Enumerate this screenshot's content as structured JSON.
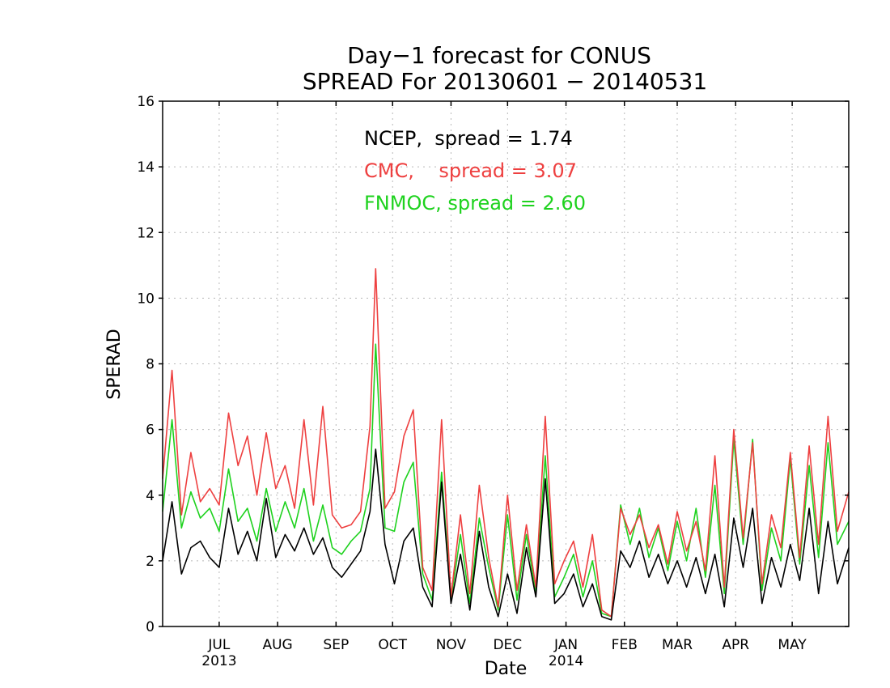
{
  "chart_data": {
    "type": "line",
    "title": "Day−1 forecast for CONUS",
    "subtitle": "SPREAD For 20130601 − 20140531",
    "xlabel": "Date",
    "ylabel": "SPERAD",
    "ylim": [
      0,
      16
    ],
    "yticks": [
      "0",
      "2",
      "4",
      "6",
      "8",
      "10",
      "12",
      "14",
      "16"
    ],
    "xlim": [
      "2013-06-01",
      "2014-05-31"
    ],
    "grid": true,
    "legend_position": "top-center",
    "xticks": [
      {
        "date": "2013-07-01",
        "label": "JUL",
        "sublabel": "2013"
      },
      {
        "date": "2013-08-01",
        "label": "AUG",
        "sublabel": ""
      },
      {
        "date": "2013-09-01",
        "label": "SEP",
        "sublabel": ""
      },
      {
        "date": "2013-10-01",
        "label": "OCT",
        "sublabel": ""
      },
      {
        "date": "2013-11-01",
        "label": "NOV",
        "sublabel": ""
      },
      {
        "date": "2013-12-01",
        "label": "DEC",
        "sublabel": ""
      },
      {
        "date": "2014-01-01",
        "label": "JAN",
        "sublabel": "2014"
      },
      {
        "date": "2014-02-01",
        "label": "FEB",
        "sublabel": ""
      },
      {
        "date": "2014-03-01",
        "label": "MAR",
        "sublabel": ""
      },
      {
        "date": "2014-04-01",
        "label": "APR",
        "sublabel": ""
      },
      {
        "date": "2014-05-01",
        "label": "MAY",
        "sublabel": ""
      }
    ],
    "series": [
      {
        "name": "NCEP",
        "legend": "NCEP,  spread = 1.74",
        "color": "#000000",
        "x": [
          "2013-06-01",
          "2013-06-06",
          "2013-06-11",
          "2013-06-16",
          "2013-06-21",
          "2013-06-26",
          "2013-07-01",
          "2013-07-06",
          "2013-07-11",
          "2013-07-16",
          "2013-07-21",
          "2013-07-26",
          "2013-07-31",
          "2013-08-05",
          "2013-08-10",
          "2013-08-15",
          "2013-08-20",
          "2013-08-25",
          "2013-08-30",
          "2013-09-04",
          "2013-09-09",
          "2013-09-14",
          "2013-09-19",
          "2013-09-22",
          "2013-09-27",
          "2013-10-02",
          "2013-10-07",
          "2013-10-12",
          "2013-10-17",
          "2013-10-22",
          "2013-10-27",
          "2013-11-01",
          "2013-11-06",
          "2013-11-11",
          "2013-11-16",
          "2013-11-21",
          "2013-11-26",
          "2013-12-01",
          "2013-12-06",
          "2013-12-11",
          "2013-12-16",
          "2013-12-21",
          "2013-12-26",
          "2013-12-31",
          "2014-01-05",
          "2014-01-10",
          "2014-01-15",
          "2014-01-20",
          "2014-01-25",
          "2014-01-30",
          "2014-02-04",
          "2014-02-09",
          "2014-02-14",
          "2014-02-19",
          "2014-02-24",
          "2014-03-01",
          "2014-03-06",
          "2014-03-11",
          "2014-03-16",
          "2014-03-21",
          "2014-03-26",
          "2014-03-31",
          "2014-04-05",
          "2014-04-10",
          "2014-04-15",
          "2014-04-20",
          "2014-04-25",
          "2014-04-30",
          "2014-05-05",
          "2014-05-10",
          "2014-05-15",
          "2014-05-20",
          "2014-05-25",
          "2014-05-31"
        ],
        "values": [
          2.0,
          3.8,
          1.6,
          2.4,
          2.6,
          2.1,
          1.8,
          3.6,
          2.2,
          2.9,
          2.0,
          3.9,
          2.1,
          2.8,
          2.3,
          3.0,
          2.2,
          2.7,
          1.8,
          1.5,
          1.9,
          2.3,
          3.5,
          5.4,
          2.5,
          1.3,
          2.6,
          3.0,
          1.2,
          0.6,
          4.4,
          0.7,
          2.2,
          0.5,
          2.9,
          1.2,
          0.3,
          1.6,
          0.4,
          2.4,
          0.9,
          4.5,
          0.7,
          1.0,
          1.6,
          0.6,
          1.3,
          0.3,
          0.2,
          2.3,
          1.8,
          2.6,
          1.5,
          2.2,
          1.3,
          2.0,
          1.2,
          2.1,
          1.0,
          2.2,
          0.6,
          3.3,
          1.8,
          3.6,
          0.7,
          2.1,
          1.2,
          2.5,
          1.4,
          3.6,
          1.0,
          3.2,
          1.3,
          2.4
        ]
      },
      {
        "name": "CMC",
        "legend": "CMC,    spread = 3.07",
        "color": "#ee4040",
        "x": [
          "2013-06-01",
          "2013-06-06",
          "2013-06-11",
          "2013-06-16",
          "2013-06-21",
          "2013-06-26",
          "2013-07-01",
          "2013-07-06",
          "2013-07-11",
          "2013-07-16",
          "2013-07-21",
          "2013-07-26",
          "2013-07-31",
          "2013-08-05",
          "2013-08-10",
          "2013-08-15",
          "2013-08-20",
          "2013-08-25",
          "2013-08-30",
          "2013-09-04",
          "2013-09-09",
          "2013-09-14",
          "2013-09-19",
          "2013-09-22",
          "2013-09-27",
          "2013-10-02",
          "2013-10-07",
          "2013-10-12",
          "2013-10-17",
          "2013-10-22",
          "2013-10-27",
          "2013-11-01",
          "2013-11-06",
          "2013-11-11",
          "2013-11-16",
          "2013-11-21",
          "2013-11-26",
          "2013-12-01",
          "2013-12-06",
          "2013-12-11",
          "2013-12-16",
          "2013-12-21",
          "2013-12-26",
          "2013-12-31",
          "2014-01-05",
          "2014-01-10",
          "2014-01-15",
          "2014-01-20",
          "2014-01-25",
          "2014-01-30",
          "2014-02-04",
          "2014-02-09",
          "2014-02-14",
          "2014-02-19",
          "2014-02-24",
          "2014-03-01",
          "2014-03-06",
          "2014-03-11",
          "2014-03-16",
          "2014-03-21",
          "2014-03-26",
          "2014-03-31",
          "2014-04-05",
          "2014-04-10",
          "2014-04-15",
          "2014-04-20",
          "2014-04-25",
          "2014-04-30",
          "2014-05-05",
          "2014-05-10",
          "2014-05-15",
          "2014-05-20",
          "2014-05-25",
          "2014-05-31"
        ],
        "values": [
          4.5,
          7.8,
          3.4,
          5.3,
          3.8,
          4.2,
          3.7,
          6.5,
          4.9,
          5.8,
          4.0,
          5.9,
          4.2,
          4.9,
          3.6,
          6.3,
          3.7,
          6.7,
          3.4,
          3.0,
          3.1,
          3.5,
          6.1,
          10.9,
          3.6,
          4.1,
          5.8,
          6.6,
          1.8,
          1.1,
          6.3,
          0.9,
          3.4,
          1.0,
          4.3,
          2.1,
          0.6,
          4.0,
          1.1,
          3.1,
          1.2,
          6.4,
          1.3,
          2.0,
          2.6,
          1.2,
          2.8,
          0.5,
          0.3,
          3.6,
          2.8,
          3.4,
          2.4,
          3.1,
          1.9,
          3.5,
          2.3,
          3.2,
          1.7,
          5.2,
          1.2,
          6.0,
          2.7,
          5.6,
          1.3,
          3.4,
          2.4,
          5.3,
          2.1,
          5.5,
          2.5,
          6.4,
          2.9,
          4.1
        ]
      },
      {
        "name": "FNMOC",
        "legend": "FNMOC, spread = 2.60",
        "color": "#1ed21e",
        "x": [
          "2013-06-01",
          "2013-06-06",
          "2013-06-11",
          "2013-06-16",
          "2013-06-21",
          "2013-06-26",
          "2013-07-01",
          "2013-07-06",
          "2013-07-11",
          "2013-07-16",
          "2013-07-21",
          "2013-07-26",
          "2013-07-31",
          "2013-08-05",
          "2013-08-10",
          "2013-08-15",
          "2013-08-20",
          "2013-08-25",
          "2013-08-30",
          "2013-09-04",
          "2013-09-09",
          "2013-09-14",
          "2013-09-19",
          "2013-09-22",
          "2013-09-27",
          "2013-10-02",
          "2013-10-07",
          "2013-10-12",
          "2013-10-17",
          "2013-10-22",
          "2013-10-27",
          "2013-11-01",
          "2013-11-06",
          "2013-11-11",
          "2013-11-16",
          "2013-11-21",
          "2013-11-26",
          "2013-12-01",
          "2013-12-06",
          "2013-12-11",
          "2013-12-16",
          "2013-12-21",
          "2013-12-26",
          "2013-12-31",
          "2014-01-05",
          "2014-01-10",
          "2014-01-15",
          "2014-01-20",
          "2014-01-25",
          "2014-01-30",
          "2014-02-04",
          "2014-02-09",
          "2014-02-14",
          "2014-02-19",
          "2014-02-24",
          "2014-03-01",
          "2014-03-06",
          "2014-03-11",
          "2014-03-16",
          "2014-03-21",
          "2014-03-26",
          "2014-03-31",
          "2014-04-05",
          "2014-04-10",
          "2014-04-15",
          "2014-04-20",
          "2014-04-25",
          "2014-04-30",
          "2014-05-05",
          "2014-05-10",
          "2014-05-15",
          "2014-05-20",
          "2014-05-25",
          "2014-05-31"
        ],
        "values": [
          3.5,
          6.3,
          3.0,
          4.1,
          3.3,
          3.6,
          2.9,
          4.8,
          3.2,
          3.6,
          2.6,
          4.2,
          2.9,
          3.8,
          3.0,
          4.2,
          2.6,
          3.7,
          2.4,
          2.2,
          2.6,
          2.9,
          4.2,
          8.6,
          3.0,
          2.9,
          4.4,
          5.0,
          1.6,
          0.8,
          4.7,
          0.8,
          2.8,
          0.7,
          3.3,
          1.8,
          0.5,
          3.4,
          0.8,
          2.8,
          1.0,
          5.2,
          0.9,
          1.5,
          2.2,
          0.9,
          2.0,
          0.4,
          0.3,
          3.7,
          2.5,
          3.6,
          2.1,
          3.0,
          1.7,
          3.2,
          2.0,
          3.6,
          1.5,
          4.3,
          1.0,
          5.7,
          2.5,
          5.7,
          1.1,
          3.0,
          2.0,
          5.1,
          1.9,
          4.9,
          2.1,
          5.6,
          2.5,
          3.2
        ]
      }
    ]
  }
}
